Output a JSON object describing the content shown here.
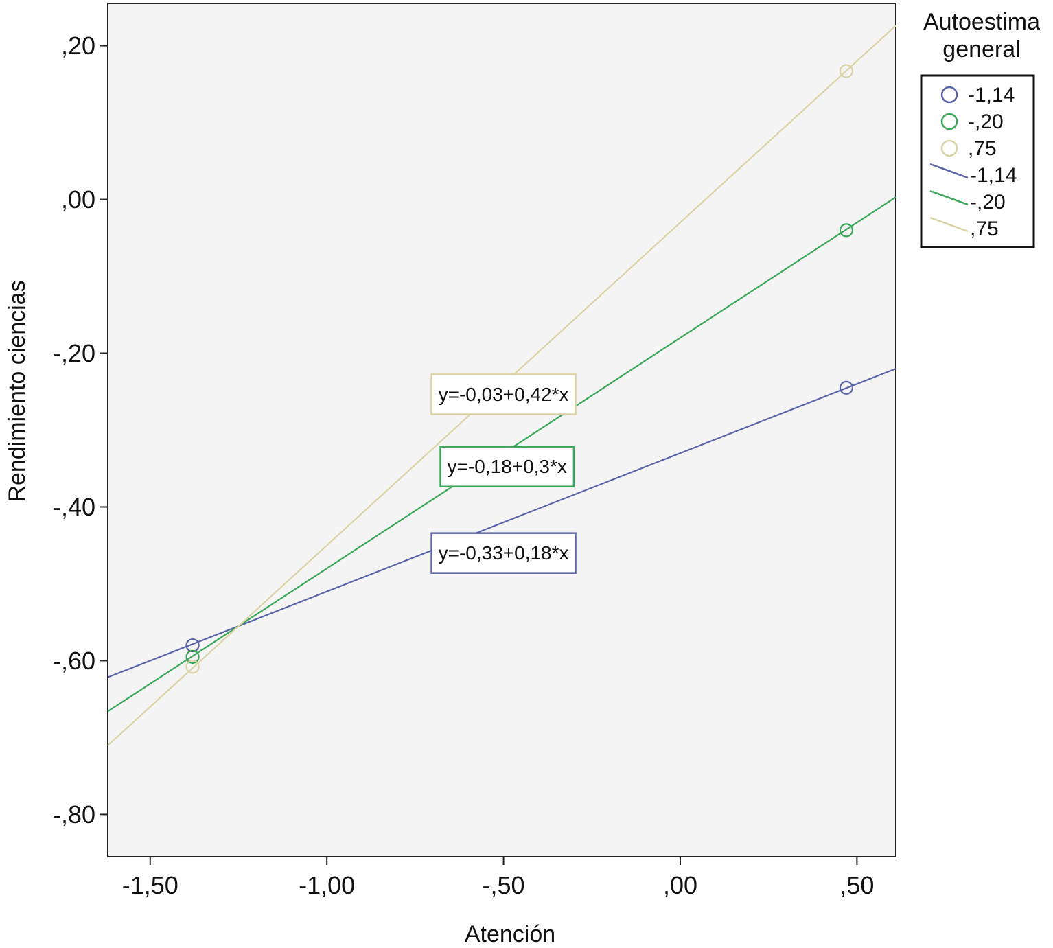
{
  "chart_data": {
    "type": "scatter",
    "title": "",
    "xlabel": "Atención",
    "ylabel": "Rendimiento ciencias",
    "xlim": [
      -1.62,
      0.61
    ],
    "ylim": [
      -0.855,
      0.255
    ],
    "x_ticks": [
      {
        "value": -1.5,
        "label": "-1,50"
      },
      {
        "value": -1.0,
        "label": "-1,00"
      },
      {
        "value": -0.5,
        "label": "-,50"
      },
      {
        "value": 0.0,
        "label": ",00"
      },
      {
        "value": 0.5,
        "label": ",50"
      }
    ],
    "y_ticks": [
      {
        "value": 0.2,
        "label": ",20"
      },
      {
        "value": 0.0,
        "label": ",00"
      },
      {
        "value": -0.2,
        "label": "-,20"
      },
      {
        "value": -0.4,
        "label": "-,40"
      },
      {
        "value": -0.6,
        "label": "-,60"
      },
      {
        "value": -0.8,
        "label": "-,80"
      }
    ],
    "grid": false,
    "legend_position": "right",
    "legend_title": "Autoestima general",
    "series": [
      {
        "name": "-1,14",
        "color": "#5a64a8",
        "points": [
          [
            -1.38,
            -0.58
          ],
          [
            0.47,
            -0.245
          ]
        ],
        "fit": {
          "intercept": -0.33,
          "slope": 0.18
        },
        "equation": "y=-0,33+0,18*x",
        "label_anchor": [
          -0.5,
          -0.46
        ]
      },
      {
        "name": "-,20",
        "color": "#3aa658",
        "points": [
          [
            -1.38,
            -0.595
          ],
          [
            0.47,
            -0.04
          ]
        ],
        "fit": {
          "intercept": -0.18,
          "slope": 0.3
        },
        "equation": "y=-0,18+0,3*x",
        "label_anchor": [
          -0.49,
          -0.3475
        ]
      },
      {
        "name": ",75",
        "color": "#d9d3a6",
        "points": [
          [
            -1.38,
            -0.608
          ],
          [
            0.47,
            0.167
          ]
        ],
        "fit": {
          "intercept": -0.03,
          "slope": 0.42
        },
        "equation": "y=-0,03+0,42*x",
        "label_anchor": [
          -0.5,
          -0.2535
        ]
      }
    ]
  }
}
